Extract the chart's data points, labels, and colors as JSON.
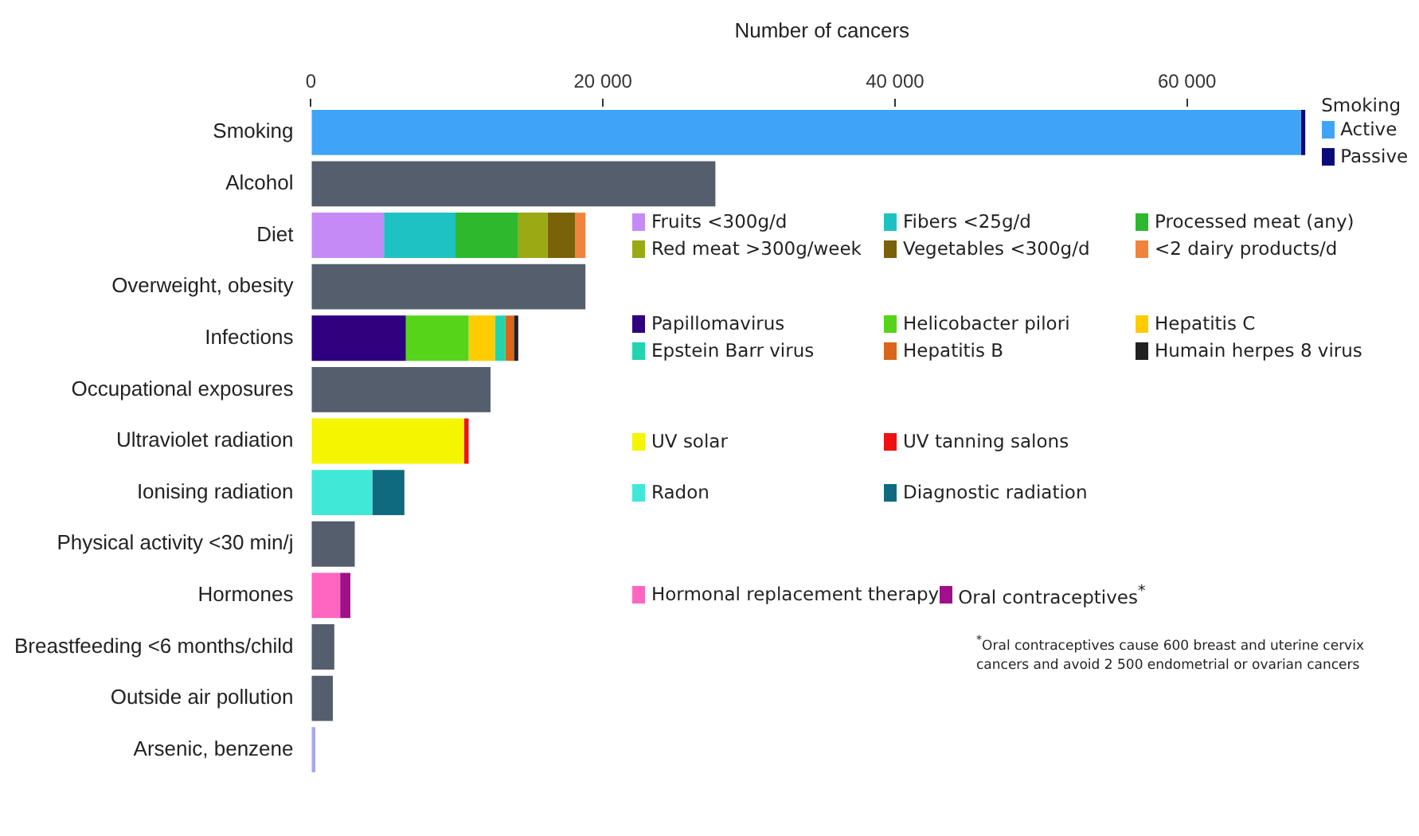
{
  "chart_data": {
    "type": "bar",
    "orientation": "horizontal",
    "stacked": true,
    "xlabel": "Number of cancers",
    "legend_title": "Smoking",
    "legend": "right",
    "grid": false,
    "categories": [
      "Smoking",
      "Alcohol",
      "Diet",
      "Overweight, obesity",
      "Infections",
      "Occupational exposures",
      "Ultraviolet radiation",
      "Ionising radiation",
      "Physical activity <30 min/j",
      "Hormones",
      "Breastfeeding <6 months/child",
      "Outside air pollution",
      "Arsenic, benzene"
    ],
    "xlim": [
      0,
      70000
    ],
    "xticks": [
      0,
      {
        "value": 20000,
        "label": "20 000"
      },
      {
        "value": 40000,
        "label": "40 000"
      },
      {
        "value": 60000,
        "label": "60 000"
      }
    ],
    "series": [
      {
        "name": "Active",
        "color": "#3fa4f8",
        "values": [
          67800,
          null,
          null,
          null,
          null,
          null,
          null,
          null,
          null,
          null,
          null,
          null,
          null
        ]
      },
      {
        "name": "Passive",
        "color": "#0a0a7a",
        "values": [
          300,
          null,
          null,
          null,
          null,
          null,
          null,
          null,
          null,
          null,
          null,
          null,
          null
        ]
      },
      {
        "color": "#555e6d",
        "values": [
          null,
          27700,
          null,
          18800,
          null,
          12300,
          null,
          null,
          3000,
          null,
          1600,
          1500,
          null
        ]
      },
      {
        "name": "Fruits <300g/d",
        "color": "#c58af5",
        "values": [
          null,
          null,
          5000,
          null,
          null,
          null,
          null,
          null,
          null,
          null,
          null,
          null,
          null
        ]
      },
      {
        "name": "Fibers <25g/d",
        "color": "#1fc2c2",
        "values": [
          null,
          null,
          4900,
          null,
          null,
          null,
          null,
          null,
          null,
          null,
          null,
          null,
          null
        ]
      },
      {
        "name": "Processed meat (any)",
        "color": "#2db82d",
        "values": [
          null,
          null,
          4300,
          null,
          null,
          null,
          null,
          null,
          null,
          null,
          null,
          null,
          null
        ]
      },
      {
        "name": "Red meat >300g/week",
        "color": "#9aaa14",
        "values": [
          null,
          null,
          2000,
          null,
          null,
          null,
          null,
          null,
          null,
          null,
          null,
          null,
          null
        ]
      },
      {
        "name": "Vegetables <300g/d",
        "color": "#7a6208",
        "values": [
          null,
          null,
          1900,
          null,
          null,
          null,
          null,
          null,
          null,
          null,
          null,
          null,
          null
        ]
      },
      {
        "name": "<2 dairy products/d",
        "color": "#f0843c",
        "values": [
          null,
          null,
          700,
          null,
          null,
          null,
          null,
          null,
          null,
          null,
          null,
          null,
          null
        ]
      },
      {
        "name": "Papillomavirus",
        "color": "#2e0080",
        "values": [
          null,
          null,
          null,
          null,
          6500,
          null,
          null,
          null,
          null,
          null,
          null,
          null,
          null
        ]
      },
      {
        "name": "Helicobacter pilori",
        "color": "#55d41a",
        "values": [
          null,
          null,
          null,
          null,
          4300,
          null,
          null,
          null,
          null,
          null,
          null,
          null,
          null
        ]
      },
      {
        "name": "Hepatitis C",
        "color": "#ffcc00",
        "values": [
          null,
          null,
          null,
          null,
          1800,
          null,
          null,
          null,
          null,
          null,
          null,
          null,
          null
        ]
      },
      {
        "name": "Epstein Barr virus",
        "color": "#20d4b0",
        "values": [
          null,
          null,
          null,
          null,
          700,
          null,
          null,
          null,
          null,
          null,
          null,
          null,
          null
        ]
      },
      {
        "name": "Hepatitis B",
        "color": "#d9661a",
        "values": [
          null,
          null,
          null,
          null,
          600,
          null,
          null,
          null,
          null,
          null,
          null,
          null,
          null
        ]
      },
      {
        "name": "Humain herpes 8 virus",
        "color": "#222222",
        "values": [
          null,
          null,
          null,
          null,
          300,
          null,
          null,
          null,
          null,
          null,
          null,
          null,
          null
        ]
      },
      {
        "name": "UV solar",
        "color": "#f5f500",
        "values": [
          null,
          null,
          null,
          null,
          null,
          null,
          10500,
          null,
          null,
          null,
          null,
          null,
          null
        ]
      },
      {
        "name": "UV tanning salons",
        "color": "#ee1111",
        "values": [
          null,
          null,
          null,
          null,
          null,
          null,
          300,
          null,
          null,
          null,
          null,
          null,
          null
        ]
      },
      {
        "name": "Radon",
        "color": "#40e8d8",
        "values": [
          null,
          null,
          null,
          null,
          null,
          null,
          null,
          4200,
          null,
          null,
          null,
          null,
          null
        ]
      },
      {
        "name": "Diagnostic radiation",
        "color": "#0f6a80",
        "values": [
          null,
          null,
          null,
          null,
          null,
          null,
          null,
          2200,
          null,
          null,
          null,
          null,
          null
        ]
      },
      {
        "name": "Hormonal replacement therapy",
        "color": "#ff66c0",
        "values": [
          null,
          null,
          null,
          null,
          null,
          null,
          null,
          null,
          null,
          2000,
          null,
          null,
          null
        ]
      },
      {
        "name": "Oral contraceptives$^{*}$",
        "color": "#a0108a",
        "values": [
          null,
          null,
          null,
          null,
          null,
          null,
          null,
          null,
          null,
          700,
          null,
          null,
          null
        ]
      },
      {
        "color": "#a8a8f0",
        "values": [
          null,
          null,
          null,
          null,
          null,
          null,
          null,
          null,
          null,
          null,
          null,
          null,
          300
        ]
      }
    ],
    "annotations": [
      "$^{*}$Oral contraceptives cause 600 breast and uterine cervix cancers and avoid 2 500 endometrial or ovarian cancers"
    ]
  }
}
